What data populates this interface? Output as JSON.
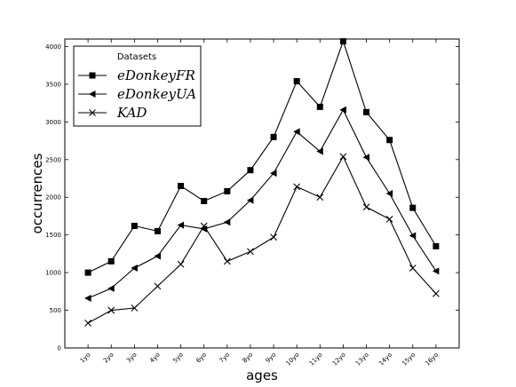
{
  "chart_data": {
    "type": "line",
    "xlabel": "ages",
    "ylabel": "occurrences",
    "categories": [
      "1yo",
      "2yo",
      "3yo",
      "4yo",
      "5yo",
      "6yo",
      "7yo",
      "8yo",
      "9yo",
      "10yo",
      "11yo",
      "12yo",
      "13yo",
      "14yo",
      "15yo",
      "16yo"
    ],
    "ylim": [
      0,
      4100
    ],
    "yticks": [
      0,
      500,
      1000,
      1500,
      2000,
      2500,
      3000,
      3500,
      4000
    ],
    "grid": false,
    "legend": {
      "title": "Datasets",
      "placement": "top-left"
    },
    "series": [
      {
        "name": "eDonkeyFR",
        "marker": "square",
        "values": [
          1000,
          1150,
          1620,
          1550,
          2150,
          1950,
          2080,
          2360,
          2800,
          3540,
          3200,
          4070,
          3130,
          2760,
          1860,
          1350
        ]
      },
      {
        "name": "eDonkeyUA",
        "marker": "triangle-left",
        "values": [
          660,
          790,
          1060,
          1220,
          1630,
          1580,
          1670,
          1960,
          2320,
          2870,
          2610,
          3160,
          2530,
          2050,
          1490,
          1020
        ]
      },
      {
        "name": "KAD",
        "marker": "x",
        "values": [
          330,
          500,
          530,
          820,
          1110,
          1620,
          1150,
          1280,
          1470,
          2140,
          2000,
          2540,
          1870,
          1710,
          1060,
          720
        ]
      }
    ]
  }
}
